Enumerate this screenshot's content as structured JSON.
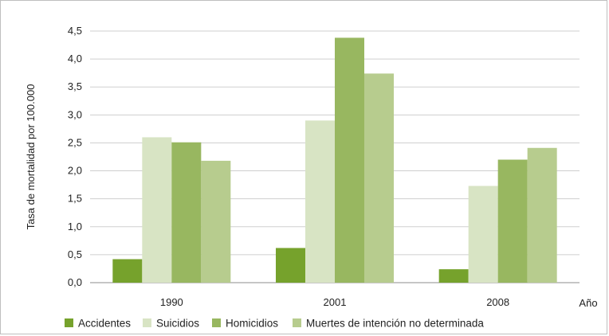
{
  "chart_data": {
    "type": "bar",
    "categories": [
      "1990",
      "2001",
      "2008"
    ],
    "series": [
      {
        "name": "Accidentes",
        "values": [
          0.42,
          0.62,
          0.24
        ],
        "color": "#76a22c"
      },
      {
        "name": "Suicidios",
        "values": [
          2.6,
          2.9,
          1.73
        ],
        "color": "#d8e4c4"
      },
      {
        "name": "Homicidios",
        "values": [
          2.51,
          4.38,
          2.2
        ],
        "color": "#98b760"
      },
      {
        "name": "Muertes de intención no determinada",
        "values": [
          2.18,
          3.74,
          2.41
        ],
        "color": "#b7cc8e"
      }
    ],
    "ylabel": "Tasa de mortalidad por 100.000",
    "xlabel": "Año",
    "ylim": [
      0,
      4.5
    ],
    "yticks": [
      "0,0",
      "0,5",
      "1,0",
      "1,5",
      "2,0",
      "2,5",
      "3,0",
      "3,5",
      "4,0",
      "4,5"
    ],
    "ytick_values": [
      0,
      0.5,
      1.0,
      1.5,
      2.0,
      2.5,
      3.0,
      3.5,
      4.0,
      4.5
    ],
    "grid": true,
    "legend_position": "bottom-left"
  }
}
